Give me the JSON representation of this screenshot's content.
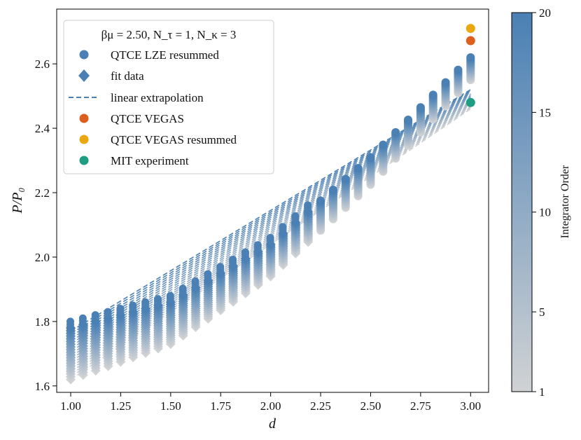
{
  "chart_data": {
    "type": "scatter",
    "legend_title": "βμ = 2.50, N_τ = 1, N_κ = 3",
    "xlabel": "d",
    "ylabel": "P/P₀",
    "xlim": [
      0.93,
      3.09
    ],
    "ylim": [
      1.58,
      2.77
    ],
    "xticks": [
      "1.00",
      "1.25",
      "1.50",
      "1.75",
      "2.00",
      "2.25",
      "2.50",
      "2.75",
      "3.00"
    ],
    "yticks": [
      "1.6",
      "1.8",
      "2.0",
      "2.2",
      "2.4",
      "2.6"
    ],
    "colorbar": {
      "label": "Integrator Order",
      "min": 1,
      "max": 20,
      "ticks": [
        "1",
        "5",
        "10",
        "15",
        "20"
      ],
      "color_low": "#d0d2d4",
      "color_high": "#4a80b4"
    },
    "orders": {
      "min": 1,
      "max": 20
    },
    "d_range": {
      "start": 1.0,
      "end": 3.0,
      "step": 0.0625
    },
    "model": {
      "base": {
        "d": [
          1.0,
          1.5,
          2.0,
          2.5,
          3.0
        ],
        "value": [
          1.78,
          1.86,
          2.04,
          2.31,
          2.62
        ]
      },
      "spread": {
        "d": [
          1.0,
          2.0,
          3.0
        ],
        "value": [
          0.16,
          0.1,
          0.07
        ]
      }
    },
    "linear_extrapolation": {
      "order_20": {
        "d": [
          1.0,
          3.0
        ],
        "value": [
          1.77,
          2.52
        ]
      },
      "order_1": {
        "d": [
          1.0,
          3.0
        ],
        "value": [
          1.62,
          2.46
        ]
      }
    },
    "series": [
      {
        "name": "QTCE LZE resummed",
        "marker": "circle",
        "color": "#4a80b4"
      },
      {
        "name": "fit data",
        "marker": "diamond",
        "color": "#4a80b4"
      },
      {
        "name": "linear extrapolation",
        "marker": "dashed-line",
        "color": "#4a80b4"
      },
      {
        "name": "QTCE VEGAS",
        "marker": "circle",
        "color": "#dc5f1e",
        "x": 3.0,
        "y": 2.672
      },
      {
        "name": "QTCE VEGAS resummed",
        "marker": "circle",
        "color": "#e9a80e",
        "x": 3.0,
        "y": 2.71
      },
      {
        "name": "MIT experiment",
        "marker": "circle",
        "color": "#1e9e80",
        "x": 3.0,
        "y": 2.48
      }
    ]
  }
}
